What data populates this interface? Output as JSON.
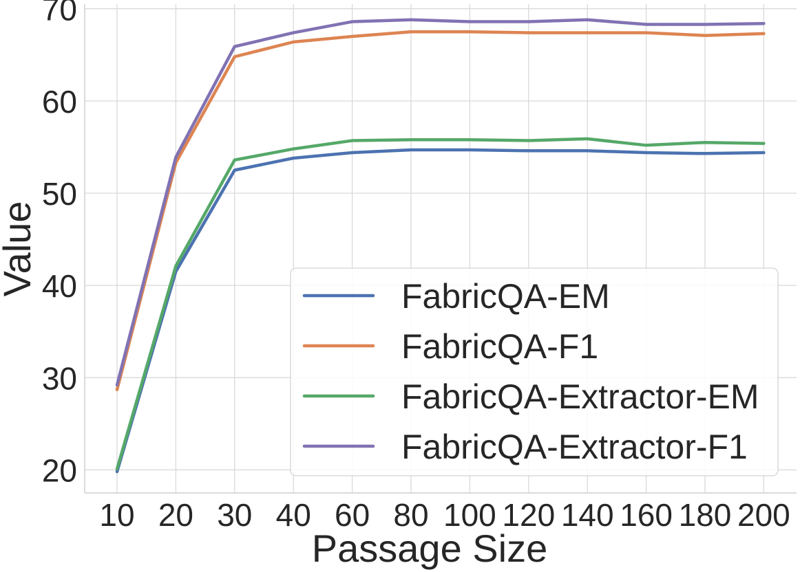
{
  "chart_data": {
    "type": "line",
    "xlabel": "Passage Size",
    "ylabel": "Value",
    "categories": [
      "10",
      "20",
      "30",
      "40",
      "60",
      "80",
      "100",
      "120",
      "140",
      "160",
      "180",
      "200"
    ],
    "y_ticks": [
      "20",
      "30",
      "40",
      "50",
      "60",
      "70"
    ],
    "ylim": [
      17.5,
      70.5
    ],
    "grid": true,
    "legend_position": "lower-right",
    "series": [
      {
        "name": "FabricQA-EM",
        "color": "#4c72b0",
        "values": [
          19.8,
          41.5,
          52.5,
          53.8,
          54.4,
          54.7,
          54.7,
          54.6,
          54.6,
          54.4,
          54.3,
          54.4
        ]
      },
      {
        "name": "FabricQA-F1",
        "color": "#dd8452",
        "values": [
          28.7,
          53.3,
          64.8,
          66.4,
          67.0,
          67.5,
          67.5,
          67.4,
          67.4,
          67.4,
          67.1,
          67.3
        ]
      },
      {
        "name": "FabricQA-Extractor-EM",
        "color": "#55a868",
        "values": [
          20.1,
          42.1,
          53.6,
          54.8,
          55.7,
          55.8,
          55.8,
          55.7,
          55.9,
          55.2,
          55.5,
          55.4
        ]
      },
      {
        "name": "FabricQA-Extractor-F1",
        "color": "#8172b3",
        "values": [
          29.2,
          53.9,
          65.9,
          67.4,
          68.6,
          68.8,
          68.6,
          68.6,
          68.8,
          68.3,
          68.3,
          68.4
        ]
      }
    ]
  }
}
